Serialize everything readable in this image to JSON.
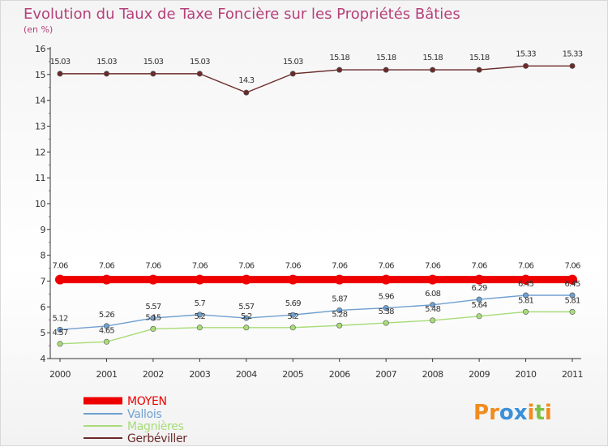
{
  "chart_data": {
    "type": "line",
    "title": "Evolution du Taux de Taxe Foncière sur les Propriétés Bâties",
    "subtitle": "(en %)",
    "categories": [
      "2000",
      "2001",
      "2002",
      "2003",
      "2004",
      "2005",
      "2006",
      "2007",
      "2008",
      "2009",
      "2010",
      "2011"
    ],
    "ylim": [
      4,
      16
    ],
    "yticks": [
      "4",
      "5",
      "6",
      "7",
      "8",
      "9",
      "10",
      "11",
      "12",
      "13",
      "14",
      "15",
      "16"
    ],
    "series": [
      {
        "name": "MOYEN",
        "color": "#ee0000",
        "values": [
          7.06,
          7.06,
          7.06,
          7.06,
          7.06,
          7.06,
          7.06,
          7.06,
          7.06,
          7.06,
          7.06,
          7.06
        ],
        "labels": [
          "7.06",
          "7.06",
          "7.06",
          "7.06",
          "7.06",
          "7.06",
          "7.06",
          "7.06",
          "7.06",
          "7.06",
          "7.06",
          "7.06"
        ]
      },
      {
        "name": "Vallois",
        "color": "#6fa0d0",
        "values": [
          5.12,
          5.26,
          5.57,
          5.7,
          5.57,
          5.69,
          5.87,
          5.96,
          6.08,
          6.29,
          6.45,
          6.45
        ],
        "labels": [
          "5.12",
          "5.26",
          "5.57",
          "5.7",
          "5.57",
          "5.69",
          "5.87",
          "5.96",
          "6.08",
          "6.29",
          "6.45",
          "6.45"
        ]
      },
      {
        "name": "Magnières",
        "color": "#a8dc78",
        "values": [
          4.57,
          4.65,
          5.15,
          5.2,
          5.2,
          5.2,
          5.28,
          5.38,
          5.48,
          5.64,
          5.81,
          5.81
        ],
        "labels": [
          "4.57",
          "4.65",
          "5.15",
          "5.2",
          "5.2",
          "5.2",
          "5.28",
          "5.38",
          "5.48",
          "5.64",
          "5.81",
          "5.81"
        ]
      },
      {
        "name": "Gerbéviller",
        "color": "#6b2a2a",
        "values": [
          15.03,
          15.03,
          15.03,
          15.03,
          14.3,
          15.03,
          15.18,
          15.18,
          15.18,
          15.18,
          15.33,
          15.33
        ],
        "labels": [
          "15.03",
          "15.03",
          "15.03",
          "15.03",
          "14.3",
          "15.03",
          "15.18",
          "15.18",
          "15.18",
          "15.18",
          "15.33",
          "15.33"
        ]
      }
    ],
    "legend_position": "bottom-left"
  },
  "logo": {
    "text": "Proxiti",
    "colors": [
      "#f08c1e",
      "#f08c1e",
      "#3a8fd8",
      "#3a8fd8",
      "#f08c1e",
      "#7cc242",
      "#f08c1e"
    ]
  }
}
